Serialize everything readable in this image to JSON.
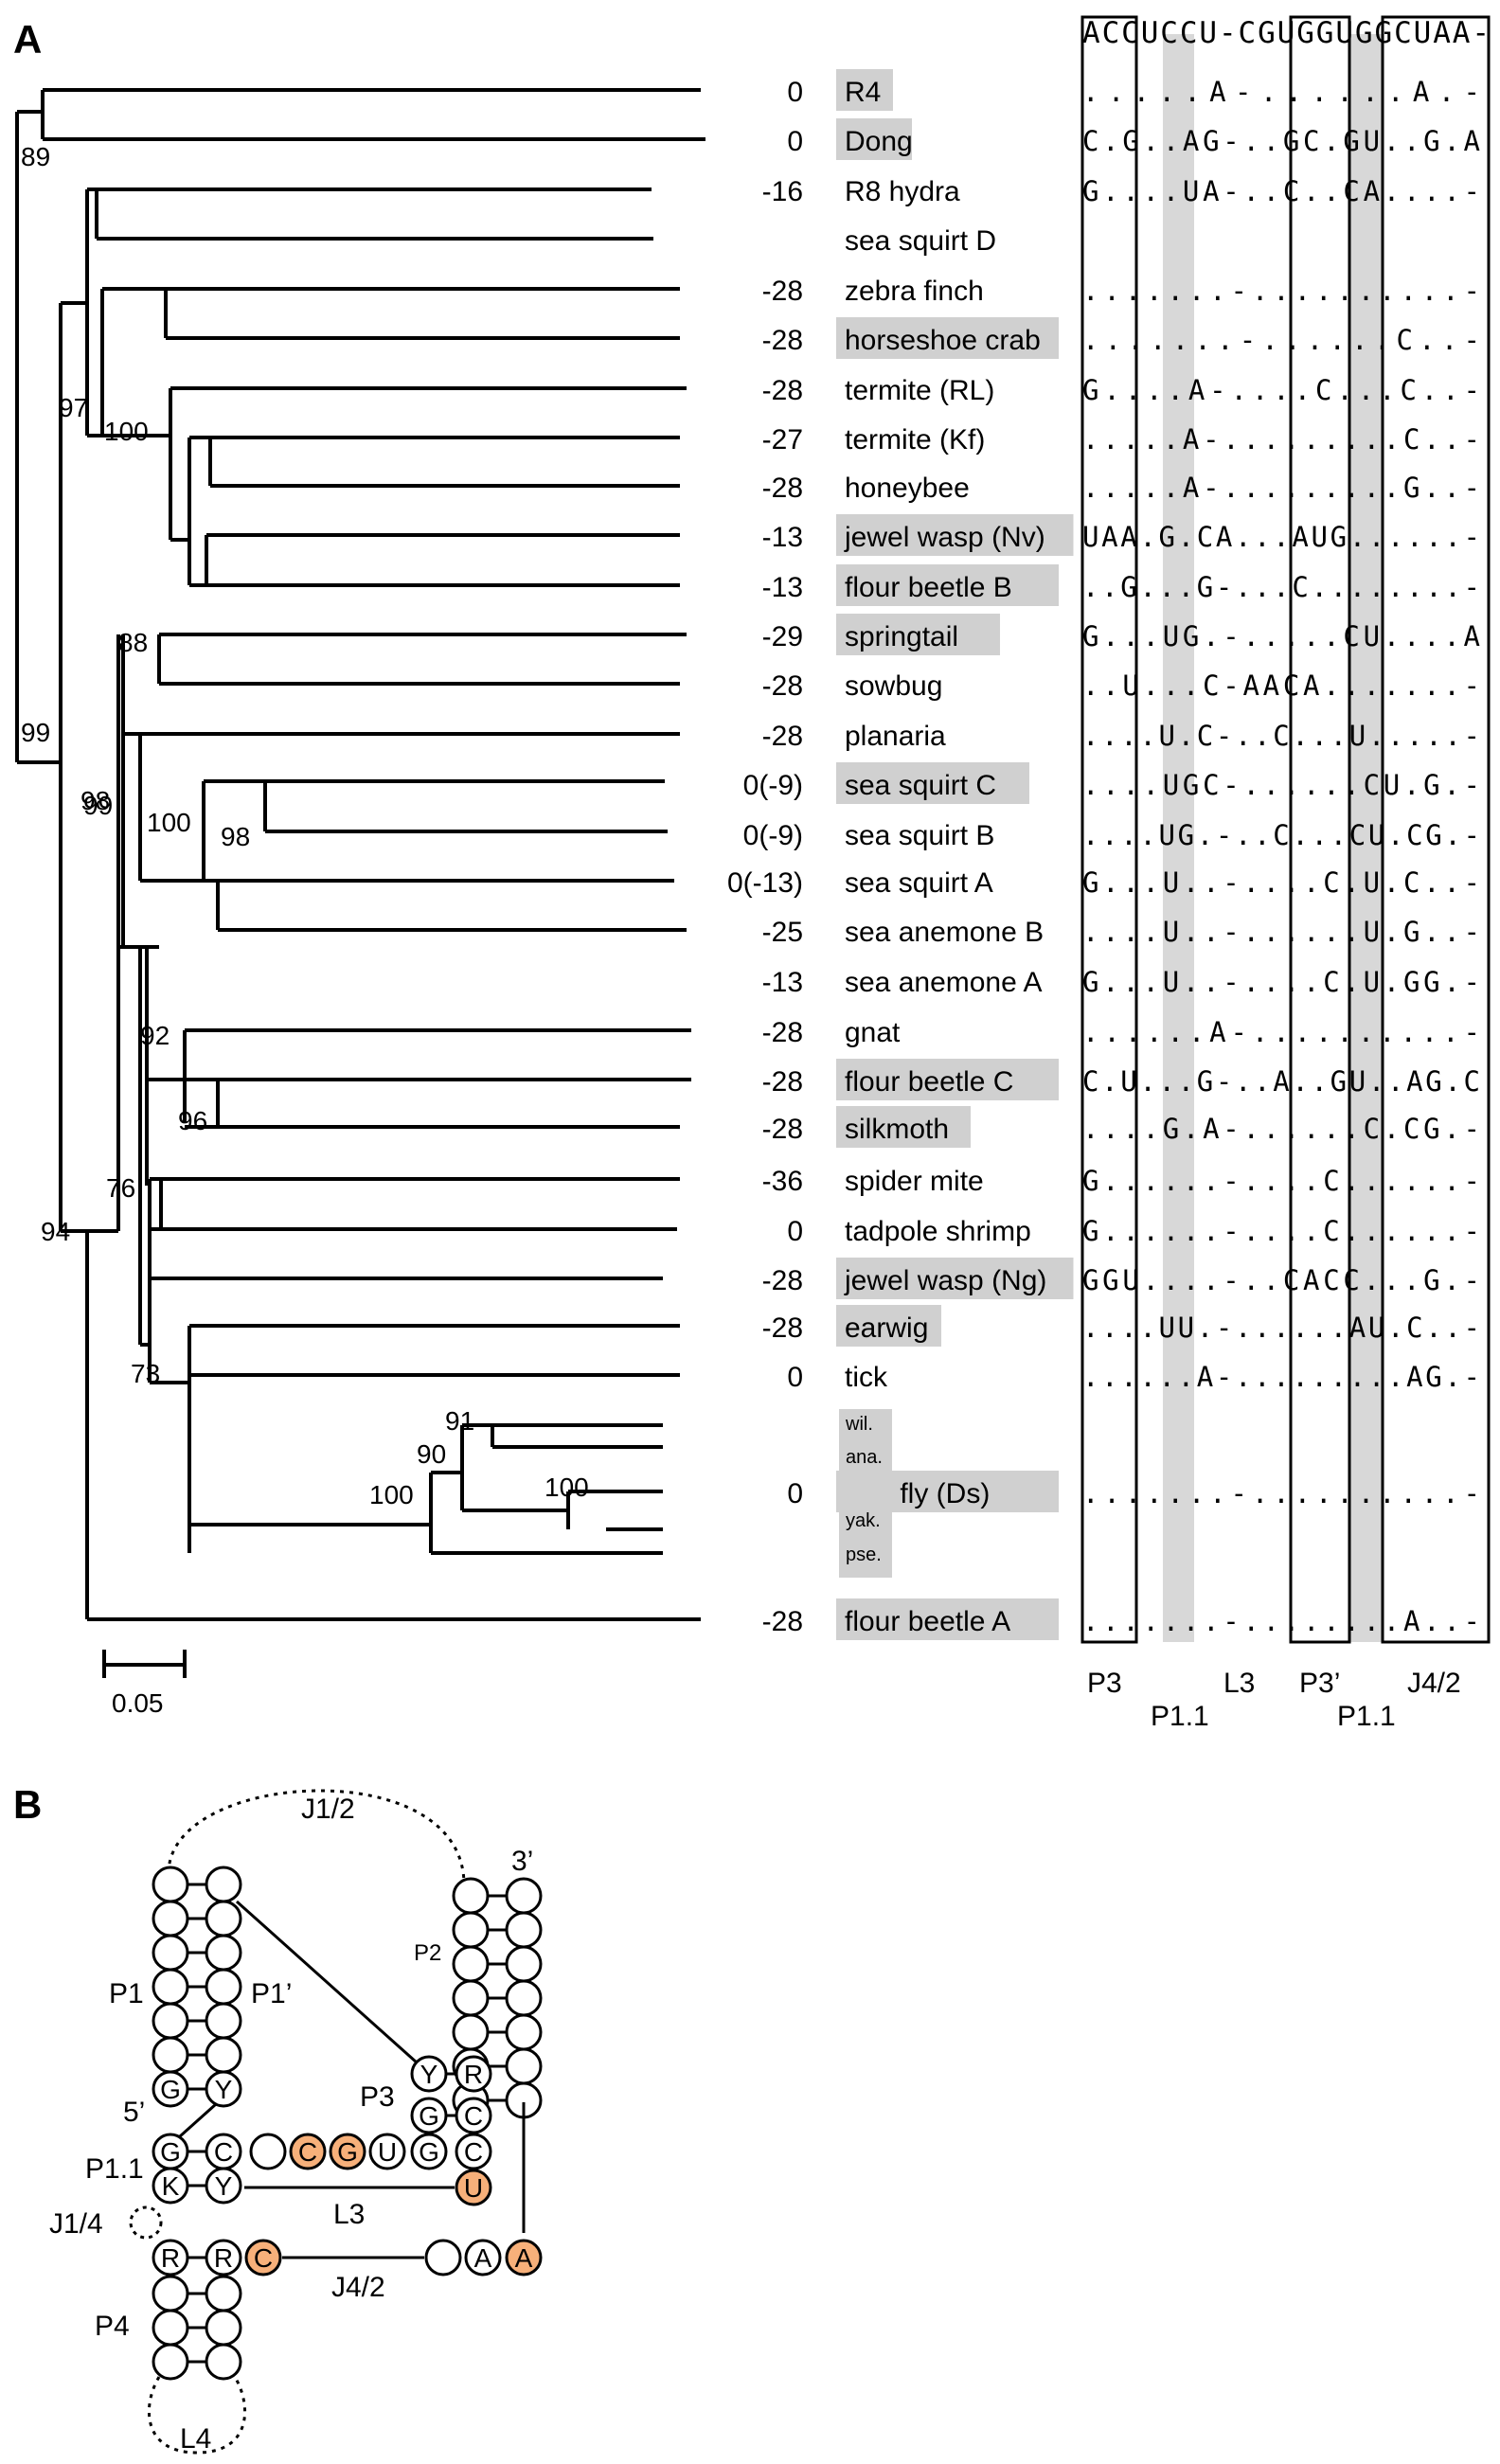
{
  "panel_a": {
    "label": "A",
    "header_seq": "ACCUCCU-CGUGGUGGCUAA-",
    "scale_label": "0.05",
    "bootstraps": [
      "89",
      "99",
      "97",
      "100",
      "88",
      "99",
      "98",
      "100",
      "98",
      "92",
      "96",
      "76",
      "94",
      "73",
      "91",
      "90",
      "100",
      "100"
    ],
    "taxa": [
      {
        "name": "R4",
        "score": "0",
        "highlight": true,
        "seq": ".....A-......A.-"
      },
      {
        "name": "Dong",
        "score": "0",
        "highlight": true,
        "seq": "C.G..AG-..GC.GU..G.A"
      },
      {
        "name": "R8 hydra",
        "score": "-16",
        "highlight": false,
        "seq": "G....UA-..C..CA....-"
      },
      {
        "name": "sea squirt D",
        "score": "",
        "highlight": false,
        "seq": ""
      },
      {
        "name": "zebra finch",
        "score": "-28",
        "highlight": false,
        "seq": ".......-..........-"
      },
      {
        "name": "horseshoe crab",
        "score": "-28",
        "highlight": true,
        "seq": ".......-......C..-"
      },
      {
        "name": "termite (RL)",
        "score": "-28",
        "highlight": false,
        "seq": "G....A-....C...C..-"
      },
      {
        "name": "termite (Kf)",
        "score": "-27",
        "highlight": false,
        "seq": ".....A-.........C..-"
      },
      {
        "name": "honeybee",
        "score": "-28",
        "highlight": false,
        "seq": ".....A-.........G..-"
      },
      {
        "name": "jewel wasp (Nv)",
        "score": "-13",
        "highlight": true,
        "seq": "UAA.G.CA...AUG......-"
      },
      {
        "name": "flour beetle B",
        "score": "-13",
        "highlight": true,
        "seq": "..G...G-...C........-"
      },
      {
        "name": "springtail",
        "score": "-29",
        "highlight": true,
        "seq": "G...UG.-.....CU....A"
      },
      {
        "name": "sowbug",
        "score": "-28",
        "highlight": false,
        "seq": "..U...C-AACA.......-"
      },
      {
        "name": "planaria",
        "score": "-28",
        "highlight": false,
        "seq": "....U.C-..C...U.....-"
      },
      {
        "name": "sea squirt C",
        "score": "0(-9)",
        "highlight": true,
        "seq": "....UGC-......CU.G.-"
      },
      {
        "name": "sea squirt B",
        "score": "0(-9)",
        "highlight": false,
        "seq": "....UG.-..C...CU.CG.-"
      },
      {
        "name": "sea squirt A",
        "score": "0(-13)",
        "highlight": false,
        "seq": "G...U..-....C.U.C..-"
      },
      {
        "name": "sea anemone B",
        "score": "-25",
        "highlight": false,
        "seq": "....U..-......U.G..-"
      },
      {
        "name": "sea anemone A",
        "score": "-13",
        "highlight": false,
        "seq": "G...U..-....C.U.GG.-"
      },
      {
        "name": "gnat",
        "score": "-28",
        "highlight": false,
        "seq": "......A-..........-"
      },
      {
        "name": "flour beetle C",
        "score": "-28",
        "highlight": true,
        "seq": "C.U...G-..A..GU..AG.C"
      },
      {
        "name": "silkmoth",
        "score": "-28",
        "highlight": true,
        "seq": "....G.A-......C.CG.-"
      },
      {
        "name": "spider mite",
        "score": "-36",
        "highlight": false,
        "seq": "G......-....C......-"
      },
      {
        "name": "tadpole shrimp",
        "score": "0",
        "highlight": false,
        "seq": "G......-....C......-"
      },
      {
        "name": "jewel wasp (Ng)",
        "score": "-28",
        "highlight": true,
        "seq": "GGU....-..CACC...G.-"
      },
      {
        "name": "earwig",
        "score": "-28",
        "highlight": true,
        "seq": "....UU.-......AU.C..-"
      },
      {
        "name": "tick",
        "score": "0",
        "highlight": false,
        "seq": "......A-.........AG.-"
      },
      {
        "name": "fruit fly (Ds)",
        "score": "0",
        "highlight": true,
        "seq": ".......-..........-"
      },
      {
        "name": "flour beetle A",
        "score": "-28",
        "highlight": true,
        "seq": ".......-........A..-"
      }
    ],
    "fly_subspecies": [
      "wil.",
      "ana.",
      "yak.",
      "pse."
    ],
    "region_labels": {
      "p3": "P3",
      "p11a": "P1.1",
      "l3": "L3",
      "p3p": "P3’",
      "p11b": "P1.1",
      "j42": "J4/2"
    }
  },
  "panel_b": {
    "label": "B",
    "labels": {
      "j12": "J1/2",
      "three_prime": "3’",
      "p2": "P2",
      "p1": "P1",
      "p1p": "P1’",
      "five_prime": "5’",
      "p3": "P3",
      "p11": "P1.1",
      "l3": "L3",
      "j14": "J1/4",
      "j42": "J4/2",
      "p4": "P4",
      "l4": "L4"
    },
    "highlight_color": "#f7b07a",
    "nucleotides": {
      "p1_g": "G",
      "p1_y": "Y",
      "p3_y": "Y",
      "p3_r": "R",
      "p3_g": "G",
      "p3_c": "C",
      "p11_g": "G",
      "p11_c": "C",
      "p11_k": "K",
      "p11_y": "Y",
      "l_c1": "C",
      "l_g": "G",
      "l_u": "U",
      "l_g2": "G",
      "l_c2": "C",
      "u_hl": "U",
      "p4_r1": "R",
      "p4_r2": "R",
      "c_hl": "C",
      "a1": "A",
      "a_hl": "A"
    }
  }
}
